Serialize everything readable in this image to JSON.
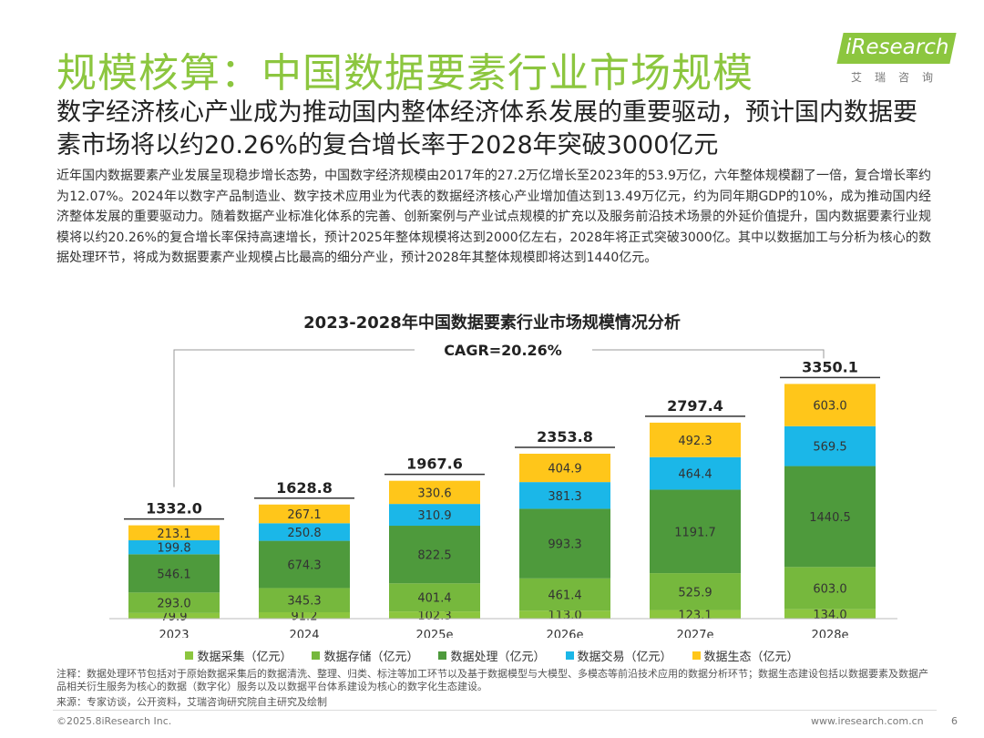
{
  "header": {
    "title": "规模核算：中国数据要素行业市场规模",
    "subtitle": "数字经济核心产业成为推动国内整体经济体系发展的重要驱动，预计国内数据要素市场将以约20.26%的复合增长率于2028年突破3000亿元",
    "logo_text": "iResearch",
    "logo_sub": "艾瑞咨询"
  },
  "paragraph": "近年国内数据要素产业发展呈现稳步增长态势，中国数字经济规模由2017年的27.2万亿增长至2023年的53.9万亿，六年整体规模翻了一倍，复合增长率约为12.07%。2024年以数字产品制造业、数字技术应用业为代表的数据经济核心产业增加值达到13.49万亿元，约为同年期GDP的10%，成为推动国内经济整体发展的重要驱动力。随着数据产业标准化体系的完善、创新案例与产业试点规模的扩充以及服务前沿技术场景的外延价值提升，国内数据要素行业规模将以约20.26%的复合增长率保持高速增长，预计2025年整体规模将达到2000亿左右，2028年将正式突破3000亿。其中以数据加工与分析为核心的数据处理环节，将成为数据要素产业规模占比最高的细分产业，预计2028年其整体规模即将达到1440亿元。",
  "chart_data": {
    "type": "bar",
    "stacked": true,
    "title": "2023-2028年中国数据要素行业市场规模情况分析",
    "annotation": "CAGR=20.26%",
    "categories": [
      "2023",
      "2024",
      "2025e",
      "2026e",
      "2027e",
      "2028e"
    ],
    "series": [
      {
        "name": "数据采集（亿元）",
        "color": "#8cc63f",
        "values": [
          79.9,
          91.2,
          102.3,
          113.0,
          123.1,
          134.0
        ]
      },
      {
        "name": "数据存储（亿元）",
        "color": "#76b83d",
        "values": [
          293.0,
          345.3,
          401.4,
          461.4,
          525.9,
          603.0
        ]
      },
      {
        "name": "数据处理（亿元）",
        "color": "#4e9a3c",
        "values": [
          546.1,
          674.3,
          822.5,
          993.3,
          1191.7,
          1440.5
        ]
      },
      {
        "name": "数据交易（亿元）",
        "color": "#1bb7e8",
        "values": [
          199.8,
          250.8,
          310.9,
          381.3,
          464.4,
          569.5
        ]
      },
      {
        "name": "数据生态（亿元）",
        "color": "#ffc61a",
        "values": [
          213.1,
          267.1,
          330.6,
          404.9,
          492.3,
          603.0
        ]
      }
    ],
    "totals": [
      "1332.0",
      "1628.8",
      "1967.6",
      "2353.8",
      "2797.4",
      "3350.1"
    ],
    "labels": [
      [
        "79.9",
        "91.2",
        "102.3",
        "113.0",
        "123.1",
        "134.0"
      ],
      [
        "293.0",
        "345.3",
        "401.4",
        "461.4",
        "525.9",
        "603.0"
      ],
      [
        "546.1",
        "674.3",
        "822.5",
        "993.3",
        "1191.7",
        "1440.5"
      ],
      [
        "199.8",
        "250.8",
        "310.9",
        "381.3",
        "464.4",
        "569.5"
      ],
      [
        "213.1",
        "267.1",
        "330.6",
        "404.9",
        "492.3",
        "603.0"
      ]
    ],
    "legend_position": "bottom",
    "grid": false
  },
  "footer": {
    "note": "注释：数据处理环节包括对于原始数据采集后的数据清洗、整理、归类、标注等加工环节以及基于数据模型与大模型、多模态等前沿技术应用的数据分析环节；数据生态建设包括以数据要素及数据产品相关衍生服务为核心的数据（数字化）服务以及以数据平台体系建设为核心的数字化生态建设。",
    "source": "来源：专家访谈，公开资料，艾瑞咨询研究院自主研究及绘制",
    "copyright": "©2025.8iResearch Inc.",
    "site": "www.iresearch.com.cn",
    "page": "6"
  }
}
